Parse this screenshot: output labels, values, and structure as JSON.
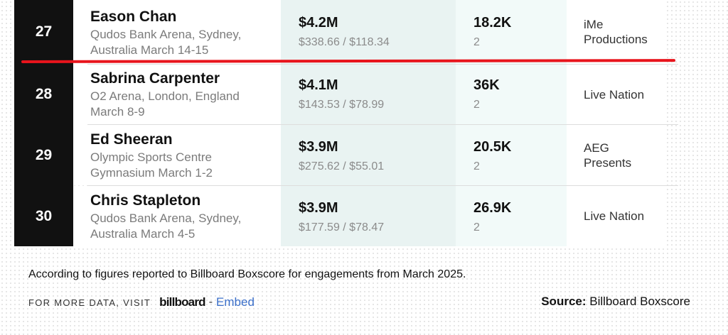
{
  "rows": [
    {
      "rank": "27",
      "artist": "Eason Chan",
      "venue": "Qudos Bank Arena, Sydney,\nAustralia March 14-15",
      "gross": "$4.2M",
      "prices": "$338.66 / $118.34",
      "attendance": "18.2K",
      "shows": "2",
      "promoter": "iMe\nProductions"
    },
    {
      "rank": "28",
      "artist": "Sabrina Carpenter",
      "venue": "O2 Arena, London, England\nMarch 8-9",
      "gross": "$4.1M",
      "prices": "$143.53 / $78.99",
      "attendance": "36K",
      "shows": "2",
      "promoter": "Live Nation"
    },
    {
      "rank": "29",
      "artist": "Ed Sheeran",
      "venue": "Olympic Sports Centre\nGymnasium March 1-2",
      "gross": "$3.9M",
      "prices": "$275.62 / $55.01",
      "attendance": "20.5K",
      "shows": "2",
      "promoter": "AEG\nPresents"
    },
    {
      "rank": "30",
      "artist": "Chris Stapleton",
      "venue": "Qudos Bank Arena, Sydney,\nAustralia March 4-5",
      "gross": "$3.9M",
      "prices": "$177.59 / $78.47",
      "attendance": "26.9K",
      "shows": "2",
      "promoter": "Live Nation"
    }
  ],
  "footer": {
    "note": "According to figures reported to Billboard Boxscore for engagements from March 2025.",
    "more_data": "FOR MORE DATA, VISIT",
    "logo": "billboard",
    "separator": "-",
    "embed": "Embed",
    "source_label": "Source:",
    "source_value": "Billboard Boxscore"
  },
  "colors": {
    "highlight_line": "#e8141c",
    "link": "#3b6fc9",
    "rank_bg": "#111111"
  }
}
